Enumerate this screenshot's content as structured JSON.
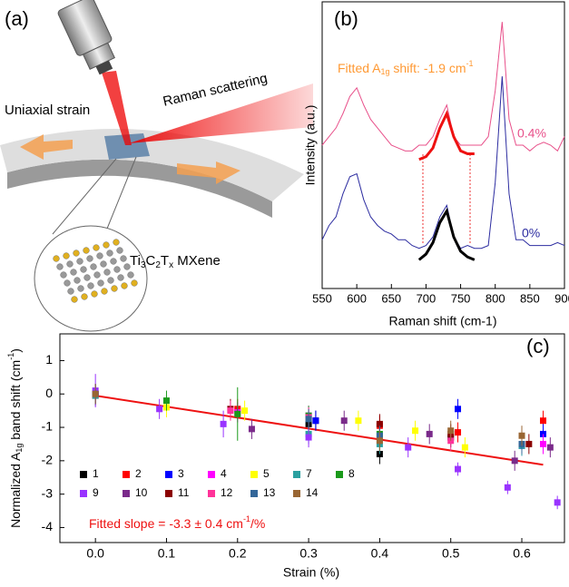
{
  "schematic": {
    "label": "(a)",
    "strain_label": "Uniaxial strain",
    "scatter_label": "Raman scattering",
    "material_parts": [
      "Ti",
      "3",
      "C",
      "2",
      "T",
      "x",
      " MXene"
    ]
  },
  "chart_data": [
    {
      "type": "line",
      "label": "(b)",
      "xlabel": "Raman shift (cm-1)",
      "ylabel": "Intensity (a.u.)",
      "annotation_parts": [
        "Fitted A",
        "1g",
        " shift: -1.9 cm",
        "-1"
      ],
      "xlim": [
        550,
        900
      ],
      "xticks": [
        550,
        600,
        650,
        700,
        750,
        800,
        850,
        900
      ],
      "ylim": [
        0,
        100
      ],
      "x": [
        550,
        560,
        570,
        580,
        590,
        600,
        610,
        620,
        630,
        640,
        650,
        660,
        670,
        680,
        690,
        700,
        710,
        720,
        730,
        740,
        750,
        760,
        770,
        780,
        790,
        800,
        810,
        820,
        830,
        840,
        850,
        860,
        870,
        880,
        890,
        900
      ],
      "series": [
        {
          "name": "0.4%",
          "color": "#e8508a",
          "values": [
            50,
            53,
            56,
            61,
            67,
            70,
            64,
            59,
            56,
            53,
            50,
            49,
            48,
            48,
            50,
            50,
            53,
            59,
            64,
            53,
            50,
            50,
            50,
            50,
            53,
            69,
            93,
            59,
            50,
            50,
            48,
            50,
            51,
            50,
            48,
            53
          ]
        },
        {
          "name": "0%",
          "color": "#2c2ca0",
          "values": [
            17,
            22,
            25,
            33,
            39,
            40,
            31,
            25,
            22,
            20,
            19,
            17,
            17,
            15,
            14,
            15,
            18,
            25,
            29,
            18,
            14,
            15,
            14,
            14,
            15,
            37,
            74,
            33,
            17,
            17,
            15,
            15,
            15,
            15,
            16,
            15
          ]
        }
      ],
      "fits": [
        {
          "color": "#ee1111",
          "x": [
            690,
            700,
            710,
            720,
            730,
            740,
            750,
            760,
            770
          ],
          "values": [
            45,
            46,
            49,
            56,
            61,
            53,
            48,
            47,
            47
          ]
        },
        {
          "color": "#000000",
          "x": [
            690,
            700,
            710,
            720,
            730,
            740,
            750,
            760,
            770
          ],
          "values": [
            10,
            12,
            16,
            23,
            27,
            18,
            13,
            11,
            10
          ]
        }
      ]
    },
    {
      "type": "scatter",
      "label": "(c)",
      "xlabel": "Strain (%)",
      "ylabel_parts": [
        "Normalized A",
        "1g",
        " band shift (cm",
        "-1",
        ")"
      ],
      "annotation_parts": [
        "Fitted slope = -3.3 ± 0.4 cm",
        "-1",
        "/%"
      ],
      "xlim": [
        -0.05,
        0.66
      ],
      "xticks": [
        {
          "value": 0,
          "label": "0.0"
        },
        0.1,
        0.2,
        0.3,
        0.4,
        0.5,
        0.6
      ],
      "ylim": [
        -4.45,
        1.8
      ],
      "yticks": [
        -4,
        -3,
        -2,
        -1,
        0,
        1
      ],
      "fit": {
        "color": "#ee1111",
        "x": [
          0,
          0.63
        ],
        "values": [
          -0.05,
          -2.12
        ]
      },
      "series": [
        {
          "name": "1",
          "color": "#000000",
          "x": [
            0,
            0.3,
            0.4,
            0.5,
            0.31
          ],
          "values": [
            0,
            -0.9,
            -1.8,
            -1.3,
            -0.8
          ],
          "errors": [
            0.3,
            0.3,
            0.3,
            0.3,
            0.3
          ]
        },
        {
          "name": "2",
          "color": "#ff0000",
          "x": [
            0,
            0.2,
            0.4,
            0.51,
            0.63
          ],
          "values": [
            -0.05,
            -0.45,
            -0.95,
            -1.15,
            -0.8
          ],
          "errors": [
            0.3,
            0.3,
            0.3,
            0.3,
            0.3
          ]
        },
        {
          "name": "3",
          "color": "#0000ff",
          "x": [
            0,
            0.31,
            0.51,
            0.6,
            0.63
          ],
          "values": [
            0,
            -0.8,
            -0.45,
            -1.55,
            -1.2
          ],
          "errors": [
            0.3,
            0.3,
            0.3,
            0.3,
            0.3
          ]
        },
        {
          "name": "4",
          "color": "#ff00ff",
          "x": [
            0,
            0.2,
            0.3,
            0.63
          ],
          "values": [
            0,
            -0.55,
            -0.65,
            -1.5
          ],
          "errors": [
            0.3,
            0.3,
            0.3,
            0.3
          ]
        },
        {
          "name": "5",
          "color": "#ffff00",
          "x": [
            0.1,
            0.21,
            0.37,
            0.45,
            0.52
          ],
          "values": [
            -0.4,
            -0.5,
            -0.8,
            -1.1,
            -1.6
          ],
          "errors": [
            0.3,
            0.3,
            0.3,
            0.3,
            0.3
          ]
        },
        {
          "name": "7",
          "color": "#2aa0a0",
          "x": [
            0,
            0.3,
            0.4,
            0.6
          ],
          "values": [
            -0.05,
            -1.2,
            -1.5,
            -1.55
          ],
          "errors": [
            0.3,
            0.3,
            0.3,
            0.3
          ]
        },
        {
          "name": "8",
          "color": "#1a9a1a",
          "x": [
            0.1,
            0.2,
            0.3,
            0.4
          ],
          "values": [
            -0.2,
            -0.6,
            -0.65,
            -1.2
          ],
          "errors": [
            0.3,
            0.8,
            0.3,
            0.3
          ]
        },
        {
          "name": "9",
          "color": "#9933ff",
          "x": [
            0,
            0.09,
            0.18,
            0.3,
            0.44,
            0.51,
            0.58,
            0.65
          ],
          "values": [
            0.1,
            -0.45,
            -0.9,
            -1.3,
            -1.6,
            -2.25,
            -2.8,
            -3.25
          ],
          "errors": [
            0.5,
            0.3,
            0.4,
            0.3,
            0.3,
            0.2,
            0.2,
            0.2
          ]
        },
        {
          "name": "10",
          "color": "#7a2a8a",
          "x": [
            0.22,
            0.35,
            0.47,
            0.59,
            0.64
          ],
          "values": [
            -1.05,
            -0.8,
            -1.2,
            -2.0,
            -1.6
          ],
          "errors": [
            0.3,
            0.3,
            0.3,
            0.3,
            0.3
          ]
        },
        {
          "name": "11",
          "color": "#8b0000",
          "x": [
            0.19,
            0.4,
            0.5,
            0.61
          ],
          "values": [
            -0.45,
            -0.9,
            -1.2,
            -1.5
          ],
          "errors": [
            0.3,
            0.3,
            0.3,
            0.3
          ]
        },
        {
          "name": "12",
          "color": "#ff3399",
          "x": [
            0.19,
            0.3,
            0.5
          ],
          "values": [
            -0.5,
            -0.7,
            -1.4
          ],
          "errors": [
            0.3,
            0.3,
            0.3
          ]
        },
        {
          "name": "13",
          "color": "#336699",
          "x": [
            0,
            0.3,
            0.4,
            0.6
          ],
          "values": [
            0,
            -0.75,
            -1.25,
            -1.5
          ],
          "errors": [
            0.3,
            0.3,
            0.3,
            0.3
          ]
        },
        {
          "name": "14",
          "color": "#996633",
          "x": [
            0,
            0.4,
            0.5,
            0.6
          ],
          "values": [
            0,
            -1.4,
            -1.1,
            -1.25
          ],
          "errors": [
            0.3,
            0.3,
            0.3,
            0.3
          ]
        }
      ]
    }
  ]
}
